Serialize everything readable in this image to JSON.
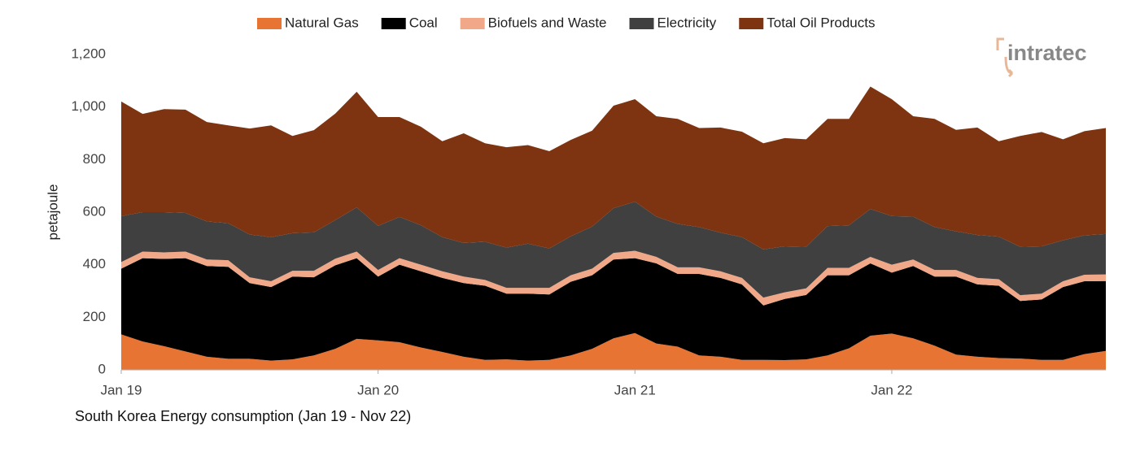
{
  "brand": "intratec",
  "chart_data": {
    "type": "stacked-area",
    "title": "South Korea Energy consumption (Jan 19 - Nov 22)",
    "y_label": "petajoule",
    "categories": [
      "Jan 19",
      null,
      null,
      null,
      null,
      null,
      null,
      null,
      null,
      null,
      null,
      null,
      "Jan 20",
      null,
      null,
      null,
      null,
      null,
      null,
      null,
      null,
      null,
      null,
      null,
      "Jan 21",
      null,
      null,
      null,
      null,
      null,
      null,
      null,
      null,
      null,
      null,
      null,
      "Jan 22",
      null,
      null,
      null,
      null,
      null,
      null,
      null,
      null,
      null,
      null
    ],
    "series": [
      {
        "name": "Natural Gas",
        "color": "#e87434",
        "values": [
          135,
          108,
          90,
          70,
          50,
          42,
          42,
          35,
          40,
          55,
          80,
          118,
          112,
          105,
          85,
          68,
          50,
          38,
          40,
          35,
          38,
          55,
          80,
          120,
          140,
          100,
          88,
          55,
          50,
          38,
          38,
          37,
          40,
          55,
          82,
          130,
          138,
          120,
          92,
          58,
          50,
          45,
          43,
          38,
          38,
          60,
          72
        ]
      },
      {
        "name": "Coal",
        "color": "#000000",
        "values": [
          250,
          317,
          332,
          355,
          345,
          350,
          288,
          280,
          315,
          297,
          318,
          307,
          243,
          295,
          290,
          282,
          280,
          282,
          250,
          255,
          249,
          280,
          280,
          300,
          285,
          305,
          277,
          310,
          300,
          287,
          207,
          233,
          245,
          305,
          278,
          275,
          232,
          275,
          263,
          297,
          275,
          275,
          219,
          230,
          277,
          277,
          266
        ]
      },
      {
        "name": "Biofuels and Waste",
        "color": "#f0a888",
        "values": [
          25,
          25,
          25,
          25,
          25,
          25,
          22,
          22,
          22,
          25,
          25,
          25,
          25,
          25,
          25,
          25,
          25,
          22,
          22,
          22,
          25,
          25,
          25,
          25,
          28,
          25,
          25,
          25,
          25,
          25,
          30,
          25,
          25,
          28,
          28,
          25,
          30,
          25,
          25,
          25,
          25,
          25,
          22,
          22,
          22,
          25,
          25
        ]
      },
      {
        "name": "Electricity",
        "color": "#404040",
        "values": [
          175,
          150,
          153,
          147,
          145,
          141,
          163,
          168,
          143,
          146,
          147,
          168,
          168,
          157,
          150,
          130,
          128,
          145,
          153,
          168,
          150,
          148,
          160,
          170,
          187,
          153,
          165,
          153,
          147,
          155,
          183,
          175,
          158,
          159,
          162,
          182,
          185,
          163,
          163,
          147,
          163,
          162,
          184,
          180,
          156,
          150,
          154
        ]
      },
      {
        "name": "Total Oil Products",
        "color": "#7e3410",
        "values": [
          436,
          374,
          392,
          393,
          378,
          372,
          403,
          425,
          370,
          389,
          405,
          440,
          414,
          380,
          375,
          365,
          417,
          375,
          382,
          375,
          370,
          367,
          365,
          390,
          390,
          382,
          400,
          377,
          400,
          401,
          404,
          412,
          409,
          408,
          405,
          466,
          445,
          382,
          412,
          386,
          409,
          363,
          422,
          435,
          384,
          396,
          403
        ]
      }
    ],
    "ylim": [
      0,
      1200
    ],
    "yticks": [
      0,
      200,
      400,
      600,
      800,
      {
        "value": 1000,
        "label": "1,000"
      },
      {
        "value": 1200,
        "label": "1,200"
      }
    ],
    "grid": false,
    "legend": "top"
  }
}
